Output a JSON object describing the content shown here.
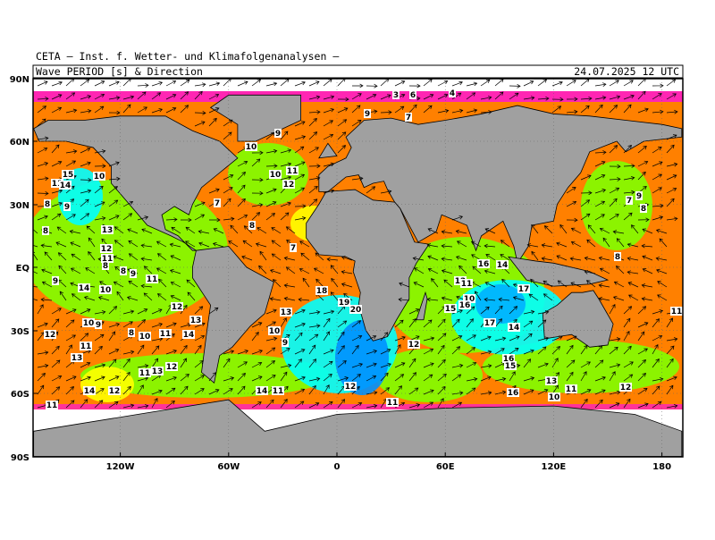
{
  "header": {
    "org": "CETA — Inst. f. Wetter- und Klimafolgenanalysen —",
    "product": "Wave_PERIOD_[s]_&_Direction",
    "valid": "24.07.2025 12 UTC"
  },
  "lat_labels": [
    "90N",
    "60N",
    "30N",
    "EQ",
    "30S",
    "60S",
    "90S"
  ],
  "lon_labels": [
    "120W",
    "60W",
    "0",
    "60E",
    "120E",
    "180"
  ],
  "period_labels": [
    "15",
    "10",
    "11",
    "14",
    "8",
    "9",
    "13",
    "8",
    "12",
    "11",
    "8",
    "8",
    "9",
    "9",
    "11",
    "14",
    "10",
    "12",
    "13",
    "10",
    "9",
    "12",
    "8",
    "10",
    "11",
    "14",
    "11",
    "13",
    "12",
    "11",
    "13",
    "14",
    "12",
    "11",
    "10",
    "9",
    "10",
    "11",
    "12",
    "7",
    "8",
    "7",
    "9",
    "7",
    "6",
    "4",
    "3",
    "18",
    "19",
    "20",
    "13",
    "10",
    "9",
    "14",
    "11",
    "12",
    "11",
    "12",
    "16",
    "14",
    "12",
    "11",
    "10",
    "16",
    "15",
    "17",
    "17",
    "14",
    "16",
    "15",
    "16",
    "13",
    "11",
    "10",
    "12",
    "9",
    "8",
    "7",
    "8",
    "11"
  ]
}
